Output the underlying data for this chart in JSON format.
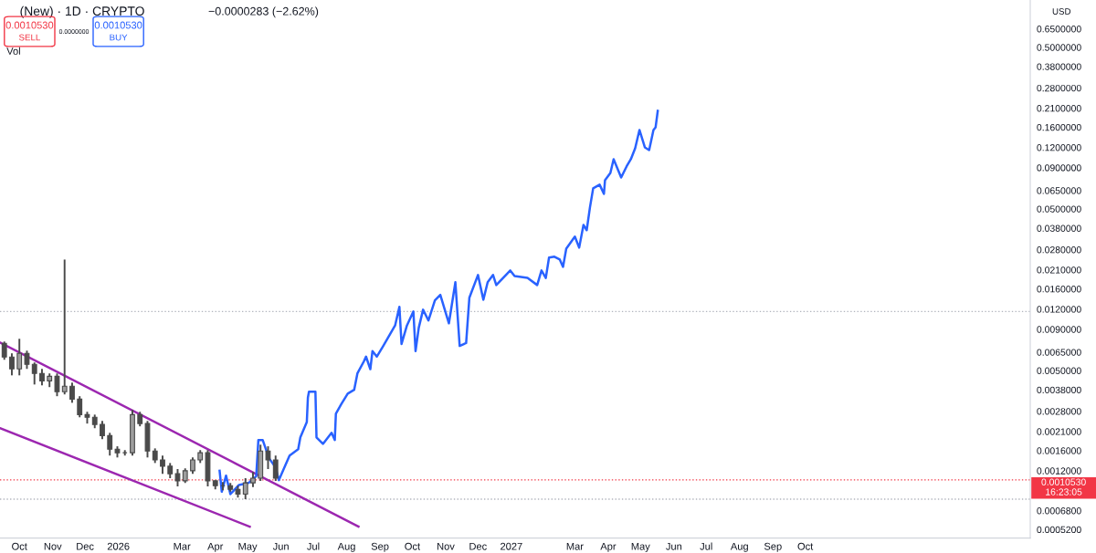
{
  "chart_data": {
    "type": "candlestick",
    "title": "(New) · 1D · CRYPTO",
    "annotations": [
      "−0.0000283 (−2.62%)",
      "0.0010530",
      "SELL",
      "0.0000000",
      "0.0010530",
      "BUY",
      "Vol",
      "USD",
      "0.0010530",
      "16:23:05"
    ],
    "log": "y",
    "grid": false,
    "legend": false,
    "xlim": [
      "2025-09-13",
      "2028-04-27"
    ],
    "xticks": [
      {
        "value": "2025-10-01",
        "label": "Oct"
      },
      {
        "value": "2025-11-01",
        "label": "Nov"
      },
      {
        "value": "2025-12-01",
        "label": "Dec"
      },
      {
        "value": "2026-01-01",
        "label": "2026"
      },
      {
        "value": "2026-03-01",
        "label": "Mar"
      },
      {
        "value": "2026-04-01",
        "label": "Apr"
      },
      {
        "value": "2026-05-01",
        "label": "May"
      },
      {
        "value": "2026-06-01",
        "label": "Jun"
      },
      {
        "value": "2026-07-01",
        "label": "Jul"
      },
      {
        "value": "2026-08-01",
        "label": "Aug"
      },
      {
        "value": "2026-09-01",
        "label": "Sep"
      },
      {
        "value": "2026-10-01",
        "label": "Oct"
      },
      {
        "value": "2026-11-01",
        "label": "Nov"
      },
      {
        "value": "2026-12-01",
        "label": "Dec"
      },
      {
        "value": "2027-01-01",
        "label": "2027"
      },
      {
        "value": "2027-03-01",
        "label": "Mar"
      },
      {
        "value": "2027-04-01",
        "label": "Apr"
      },
      {
        "value": "2027-05-01",
        "label": "May"
      },
      {
        "value": "2027-06-01",
        "label": "Jun"
      },
      {
        "value": "2027-07-01",
        "label": "Jul"
      },
      {
        "value": "2027-08-01",
        "label": "Aug"
      },
      {
        "value": "2027-09-01",
        "label": "Sep"
      },
      {
        "value": "2027-10-01",
        "label": "Oct"
      }
    ],
    "ylim": [
      0.00046,
      0.98
    ],
    "yticks": [
      {
        "value": 0.65,
        "label": "0.6500000"
      },
      {
        "value": 0.5,
        "label": "0.5000000"
      },
      {
        "value": 0.38,
        "label": "0.3800000"
      },
      {
        "value": 0.28,
        "label": "0.2800000"
      },
      {
        "value": 0.21,
        "label": "0.2100000"
      },
      {
        "value": 0.16,
        "label": "0.1600000"
      },
      {
        "value": 0.12,
        "label": "0.1200000"
      },
      {
        "value": 0.09,
        "label": "0.0900000"
      },
      {
        "value": 0.065,
        "label": "0.0650000"
      },
      {
        "value": 0.05,
        "label": "0.0500000"
      },
      {
        "value": 0.038,
        "label": "0.0380000"
      },
      {
        "value": 0.028,
        "label": "0.0280000"
      },
      {
        "value": 0.021,
        "label": "0.0210000"
      },
      {
        "value": 0.016,
        "label": "0.0160000"
      },
      {
        "value": 0.012,
        "label": "0.0120000"
      },
      {
        "value": 0.009,
        "label": "0.0090000"
      },
      {
        "value": 0.0065,
        "label": "0.0065000"
      },
      {
        "value": 0.005,
        "label": "0.0050000"
      },
      {
        "value": 0.0038,
        "label": "0.0038000"
      },
      {
        "value": 0.0028,
        "label": "0.0028000"
      },
      {
        "value": 0.0021,
        "label": "0.0021000"
      },
      {
        "value": 0.0016,
        "label": "0.0016000"
      },
      {
        "value": 0.0012,
        "label": "0.0012000"
      },
      {
        "value": 0.00068,
        "label": "0.0006800"
      },
      {
        "value": 0.00052,
        "label": "0.0005200"
      }
    ],
    "ref_lines": [
      {
        "axis": "y",
        "value": 0.001053,
        "color": "#f23645",
        "line_style": "dotted"
      },
      {
        "axis": "y",
        "value": 0.0116,
        "color": "#b2b5be",
        "line_style": "dotted"
      },
      {
        "axis": "y",
        "value": 0.0008,
        "color": "#b2b5be",
        "line_style": "dotted"
      }
    ],
    "series": [
      {
        "type": "line",
        "color": "#9c27b0",
        "x": [
          "2025-09-13",
          "2026-08-12"
        ],
        "values": [
          0.00746,
          0.000541
        ]
      },
      {
        "type": "line",
        "color": "#9c27b0",
        "x": [
          "2025-09-13",
          "2026-05-03"
        ],
        "values": [
          0.0022,
          0.000541
        ]
      },
      {
        "color": "#4a4a4a",
        "x": [
          "2025-09-17",
          "2025-09-24",
          "2025-10-01",
          "2025-10-08",
          "2025-10-15",
          "2025-10-22",
          "2025-10-29",
          "2025-11-05",
          "2025-11-12",
          "2025-11-19",
          "2025-11-26",
          "2025-12-03",
          "2025-12-10",
          "2025-12-17",
          "2025-12-24",
          "2025-12-31",
          "2026-01-07",
          "2026-01-14",
          "2026-01-21",
          "2026-01-28",
          "2026-02-04",
          "2026-02-11",
          "2026-02-18",
          "2026-02-25",
          "2026-03-04",
          "2026-03-11",
          "2026-03-18",
          "2026-03-25",
          "2026-04-01",
          "2026-04-08",
          "2026-04-15",
          "2026-04-22",
          "2026-04-29",
          "2026-05-06",
          "2026-05-13",
          "2026-05-20",
          "2026-05-27"
        ],
        "ohlc": [
          [
            0.00736,
            0.00756,
            0.00583,
            0.00606
          ],
          [
            0.00606,
            0.00639,
            0.00467,
            0.00512
          ],
          [
            0.00512,
            0.00786,
            0.00467,
            0.00639
          ],
          [
            0.00639,
            0.00664,
            0.00512,
            0.00546
          ],
          [
            0.00546,
            0.00561,
            0.0041,
            0.0048
          ],
          [
            0.0048,
            0.00512,
            0.00405,
            0.00432
          ],
          [
            0.00432,
            0.0048,
            0.00395,
            0.00461
          ],
          [
            0.00461,
            0.0048,
            0.00347,
            0.0037
          ],
          [
            0.0037,
            0.0243,
            0.00356,
            0.004
          ],
          [
            0.004,
            0.00421,
            0.00316,
            0.00333
          ],
          [
            0.00333,
            0.00347,
            0.00257,
            0.00267
          ],
          [
            0.00267,
            0.00278,
            0.00235,
            0.00257
          ],
          [
            0.00257,
            0.00267,
            0.0022,
            0.00232
          ],
          [
            0.00232,
            0.00244,
            0.00188,
            0.00198
          ],
          [
            0.00198,
            0.00206,
            0.00149,
            0.00163
          ],
          [
            0.00163,
            0.0017,
            0.00145,
            0.00155
          ],
          [
            0.00155,
            0.00161,
            0.00149,
            0.00155
          ],
          [
            0.00155,
            0.00285,
            0.00149,
            0.00267
          ],
          [
            0.00267,
            0.00278,
            0.00226,
            0.00235
          ],
          [
            0.00235,
            0.00244,
            0.00145,
            0.00159
          ],
          [
            0.00159,
            0.00165,
            0.00134,
            0.0014
          ],
          [
            0.0014,
            0.00149,
            0.00115,
            0.00128
          ],
          [
            0.00128,
            0.00134,
            0.00108,
            0.00115
          ],
          [
            0.00115,
            0.00123,
            0.00096,
            0.00104
          ],
          [
            0.00104,
            0.00124,
            0.00101,
            0.0012
          ],
          [
            0.0012,
            0.00145,
            0.00115,
            0.0014
          ],
          [
            0.0014,
            0.00161,
            0.00134,
            0.00155
          ],
          [
            0.00155,
            0.00161,
            0.00096,
            0.00104
          ],
          [
            0.00104,
            0.00105,
            0.00092,
            0.00097
          ],
          [
            0.00097,
            0.00102,
            0.00091,
            0.00097
          ],
          [
            0.00097,
            0.00101,
            0.00089,
            0.00092
          ],
          [
            0.00092,
            0.00097,
            0.00082,
            0.00086
          ],
          [
            0.00086,
            0.00108,
            0.0008,
            0.00101
          ],
          [
            0.00101,
            0.00118,
            0.00095,
            0.00108
          ],
          [
            0.00108,
            0.00174,
            0.00104,
            0.00159
          ],
          [
            0.00159,
            0.0017,
            0.00123,
            0.0014
          ],
          [
            0.0014,
            0.00149,
            0.00104,
            0.00108
          ]
        ]
      },
      {
        "type": "line",
        "color": "#2962ff",
        "x": [
          "2026-04-05",
          "2026-04-07",
          "2026-04-11",
          "2026-04-15",
          "2026-04-23",
          "2026-05-02",
          "2026-05-09",
          "2026-05-11",
          "2026-05-15",
          "2026-05-21",
          "2026-05-27",
          "2026-05-30",
          "2026-06-09",
          "2026-06-17",
          "2026-06-19",
          "2026-06-25",
          "2026-06-26",
          "2026-06-27",
          "2026-07-03",
          "2026-07-04",
          "2026-07-10",
          "2026-07-18",
          "2026-07-21",
          "2026-07-22",
          "2026-07-27",
          "2026-08-02",
          "2026-08-08",
          "2026-08-11",
          "2026-08-17",
          "2026-08-19",
          "2026-08-23",
          "2026-08-25",
          "2026-08-29",
          "2026-09-04",
          "2026-09-09",
          "2026-09-15",
          "2026-09-19",
          "2026-09-21",
          "2026-09-26",
          "2026-10-02",
          "2026-10-04",
          "2026-10-07",
          "2026-10-11",
          "2026-10-16",
          "2026-10-22",
          "2026-10-27",
          "2026-11-04",
          "2026-11-10",
          "2026-11-14",
          "2026-11-20",
          "2026-11-23",
          "2026-12-01",
          "2026-12-06",
          "2026-12-10",
          "2026-12-15",
          "2026-12-18",
          "2026-12-31",
          "2027-01-04",
          "2027-01-16",
          "2027-01-25",
          "2027-01-29",
          "2027-02-02",
          "2027-02-05",
          "2027-02-10",
          "2027-02-15",
          "2027-02-18",
          "2027-02-21",
          "2027-03-01",
          "2027-03-05",
          "2027-03-09",
          "2027-03-12",
          "2027-03-15",
          "2027-03-18",
          "2027-03-24",
          "2027-03-28",
          "2027-03-29",
          "2027-04-03",
          "2027-04-06",
          "2027-04-13",
          "2027-04-18",
          "2027-04-22",
          "2027-04-26",
          "2027-04-30",
          "2027-05-05",
          "2027-05-09",
          "2027-05-13",
          "2027-05-15",
          "2027-05-17"
        ],
        "values": [
          0.0012,
          0.00089,
          0.00112,
          0.00086,
          0.00098,
          0.00101,
          0.00111,
          0.00186,
          0.00186,
          0.00143,
          0.00126,
          0.00105,
          0.00149,
          0.00163,
          0.00193,
          0.0024,
          0.0034,
          0.0037,
          0.0037,
          0.00193,
          0.00176,
          0.00206,
          0.00186,
          0.0027,
          0.0031,
          0.0036,
          0.0038,
          0.0048,
          0.0057,
          0.0061,
          0.0051,
          0.0066,
          0.0061,
          0.0071,
          0.0081,
          0.0095,
          0.0124,
          0.0073,
          0.0095,
          0.0116,
          0.0066,
          0.0092,
          0.0119,
          0.0102,
          0.0136,
          0.0147,
          0.0098,
          0.0176,
          0.0071,
          0.0074,
          0.0141,
          0.0195,
          0.0137,
          0.0176,
          0.0195,
          0.0169,
          0.0208,
          0.0192,
          0.0187,
          0.0169,
          0.0208,
          0.0187,
          0.025,
          0.0253,
          0.0243,
          0.0219,
          0.0284,
          0.0337,
          0.0288,
          0.0398,
          0.0369,
          0.051,
          0.067,
          0.0706,
          0.0619,
          0.0753,
          0.0835,
          0.1015,
          0.0782,
          0.0915,
          0.1015,
          0.1186,
          0.1538,
          0.1202,
          0.1156,
          0.1538,
          0.16,
          0.202
        ]
      }
    ]
  }
}
